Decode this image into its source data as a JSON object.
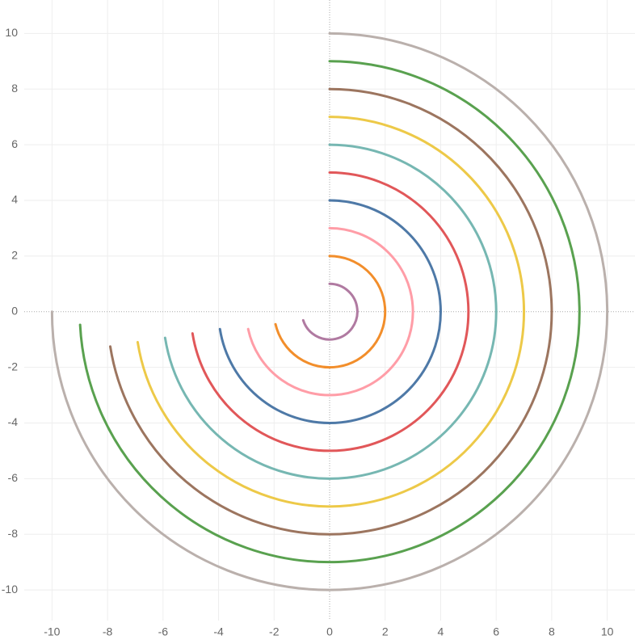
{
  "chart_data": {
    "type": "radial",
    "xlim": [
      -11,
      11
    ],
    "ylim": [
      -11.1,
      11.2
    ],
    "xticks": [
      -10,
      -8,
      -6,
      -4,
      -2,
      0,
      2,
      4,
      6,
      8,
      10
    ],
    "yticks": [
      -10,
      -8,
      -6,
      -4,
      -2,
      0,
      2,
      4,
      6,
      8,
      10
    ],
    "grid": true,
    "series": [
      {
        "color": "#b07aa1",
        "radius": 1,
        "sweep": 252
      },
      {
        "color": "#f28e2b",
        "radius": 2,
        "sweep": 257
      },
      {
        "color": "#ff9da7",
        "radius": 3,
        "sweep": 258
      },
      {
        "color": "#4e79a7",
        "radius": 4,
        "sweep": 261
      },
      {
        "color": "#e15759",
        "radius": 5,
        "sweep": 261
      },
      {
        "color": "#76b7b2",
        "radius": 6,
        "sweep": 261
      },
      {
        "color": "#edc948",
        "radius": 7,
        "sweep": 261
      },
      {
        "color": "#9c755f",
        "radius": 8,
        "sweep": 261
      },
      {
        "color": "#59a14f",
        "radius": 9,
        "sweep": 267
      },
      {
        "color": "#bab0ac",
        "radius": 10,
        "sweep": 270
      }
    ]
  }
}
